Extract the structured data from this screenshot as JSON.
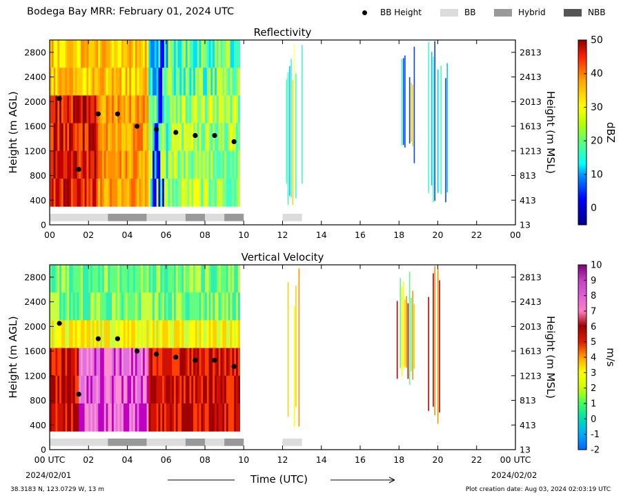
{
  "header": {
    "title": "Bodega Bay MRR:  February 01, 2024 UTC",
    "legend": [
      {
        "label": "BB Height",
        "kind": "dot",
        "color": "#000000"
      },
      {
        "label": "BB",
        "kind": "swatch",
        "color": "#dcdcdc"
      },
      {
        "label": "Hybrid",
        "kind": "swatch",
        "color": "#999999"
      },
      {
        "label": "NBB",
        "kind": "swatch",
        "color": "#555555"
      }
    ]
  },
  "footer": {
    "location": "38.3183 N, 123.0729 W, 13 m",
    "created": "Plot creation date: Aug 03, 2024 02:03:19 UTC",
    "xlabel": "Time (UTC)",
    "date_start": "2024/02/01",
    "date_end": "2024/02/02"
  },
  "chart_data": [
    {
      "type": "heatmap",
      "title": "Reflectivity",
      "xlabel": "",
      "ylabel": "Height (m AGL)",
      "ylabel_right": "Height (m MSL)",
      "xlim": [
        0,
        24
      ],
      "ylim": [
        0,
        3000
      ],
      "x_ticks": [
        "00",
        "02",
        "04",
        "06",
        "08",
        "10",
        "12",
        "14",
        "16",
        "18",
        "20",
        "22",
        "00"
      ],
      "y_ticks": [
        0,
        400,
        800,
        1200,
        1600,
        2000,
        2400,
        2800
      ],
      "y_ticks_right": [
        "13",
        "413",
        "813",
        "1213",
        "1613",
        "2013",
        "2413",
        "2813"
      ],
      "colorbar": {
        "label": "dBZ",
        "min": -5,
        "max": 50,
        "ticks": [
          0,
          10,
          20,
          30,
          40,
          50
        ]
      },
      "bb_height": {
        "x": [
          0.5,
          1.5,
          2.5,
          3.5,
          4.5,
          5.5,
          6.5,
          7.5,
          8.5,
          9.5
        ],
        "y": [
          2050,
          900,
          1800,
          1800,
          1600,
          1550,
          1500,
          1450,
          1450,
          1350
        ]
      },
      "bb_type": [
        {
          "start": 0,
          "end": 3,
          "type": "BB"
        },
        {
          "start": 3,
          "end": 5,
          "type": "Hybrid"
        },
        {
          "start": 5,
          "end": 7,
          "type": "BB"
        },
        {
          "start": 7,
          "end": 8,
          "type": "Hybrid"
        },
        {
          "start": 8,
          "end": 9,
          "type": "BB"
        },
        {
          "start": 9,
          "end": 10,
          "type": "Hybrid"
        },
        {
          "start": 12,
          "end": 13,
          "type": "BB"
        }
      ]
    },
    {
      "type": "heatmap",
      "title": "Vertical Velocity",
      "xlabel": "Time (UTC)",
      "ylabel": "Height (m AGL)",
      "ylabel_right": "Height (m MSL)",
      "xlim": [
        0,
        24
      ],
      "ylim": [
        0,
        3000
      ],
      "x_ticks": [
        "00 UTC",
        "02",
        "04",
        "06",
        "08",
        "10",
        "12",
        "14",
        "16",
        "18",
        "20",
        "22",
        "00 UTC"
      ],
      "y_ticks": [
        0,
        400,
        800,
        1200,
        1600,
        2000,
        2400,
        2800
      ],
      "y_ticks_right": [
        "13",
        "413",
        "813",
        "1213",
        "1613",
        "2013",
        "2413",
        "2813"
      ],
      "colorbar": {
        "label": "m/s",
        "min": -2,
        "max": 10,
        "ticks": [
          -2,
          -1,
          0,
          1,
          2,
          3,
          4,
          5,
          6,
          7,
          8,
          9,
          10
        ]
      },
      "bb_height": {
        "x": [
          0.5,
          1.5,
          2.5,
          3.5,
          4.5,
          5.5,
          6.5,
          7.5,
          8.5,
          9.5
        ],
        "y": [
          2050,
          900,
          1800,
          1800,
          1600,
          1550,
          1500,
          1450,
          1450,
          1350
        ]
      },
      "bb_type": [
        {
          "start": 0,
          "end": 3,
          "type": "BB"
        },
        {
          "start": 3,
          "end": 5,
          "type": "Hybrid"
        },
        {
          "start": 5,
          "end": 7,
          "type": "BB"
        },
        {
          "start": 7,
          "end": 8,
          "type": "Hybrid"
        },
        {
          "start": 8,
          "end": 9,
          "type": "BB"
        },
        {
          "start": 9,
          "end": 10,
          "type": "Hybrid"
        },
        {
          "start": 12,
          "end": 13,
          "type": "BB"
        }
      ]
    }
  ]
}
